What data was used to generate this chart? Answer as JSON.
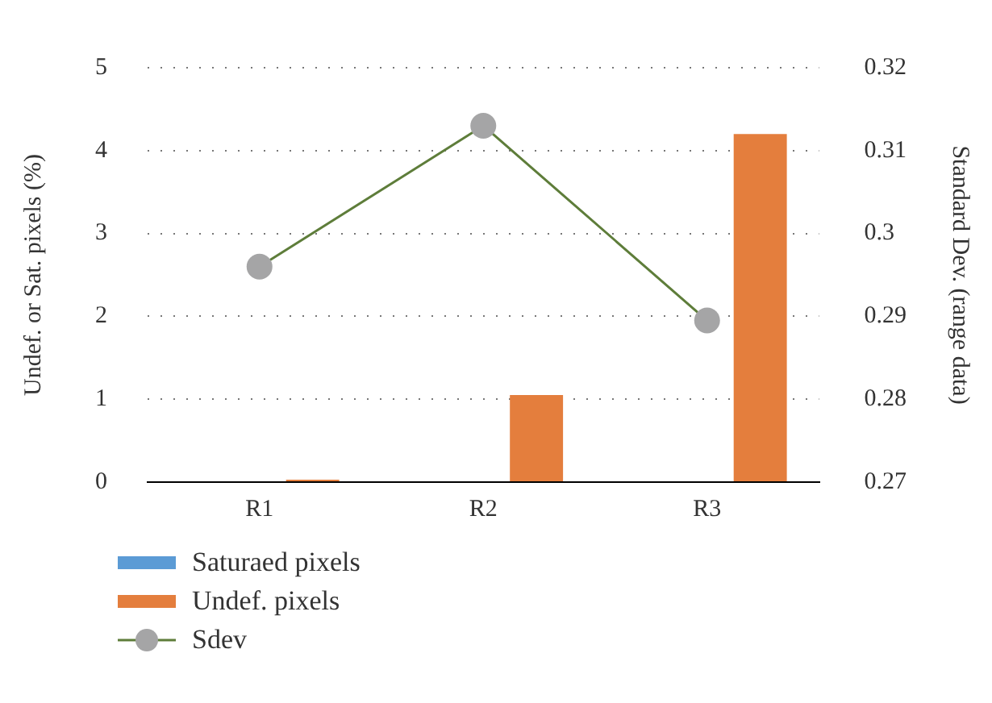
{
  "chart_data": {
    "type": "bar",
    "categories": [
      "R1",
      "R2",
      "R3"
    ],
    "ylabel": "Undef. or Sat. pixels (%)",
    "y2label": "Standard Dev. (range data)",
    "ylim": [
      0,
      5
    ],
    "yticks": [
      0,
      1,
      2,
      3,
      4,
      5
    ],
    "y2lim": [
      0.27,
      0.32
    ],
    "y2ticks": [
      0.27,
      0.28,
      0.29,
      0.3,
      0.31,
      0.32
    ],
    "grid": "y",
    "legend": "bottom left",
    "series": [
      {
        "name": "Saturaed pixels",
        "color": "#5b9bd5",
        "values": [
          0,
          0,
          0
        ]
      },
      {
        "name": "Undef. pixels",
        "color": "#e47e3d",
        "values": [
          0.03,
          1.05,
          4.2
        ]
      },
      {
        "name": "Sdev",
        "type": "line",
        "axis": "y2",
        "color": "#5e7d3a",
        "marker": "circle",
        "values": [
          0.296,
          0.313,
          0.2895
        ]
      }
    ]
  }
}
